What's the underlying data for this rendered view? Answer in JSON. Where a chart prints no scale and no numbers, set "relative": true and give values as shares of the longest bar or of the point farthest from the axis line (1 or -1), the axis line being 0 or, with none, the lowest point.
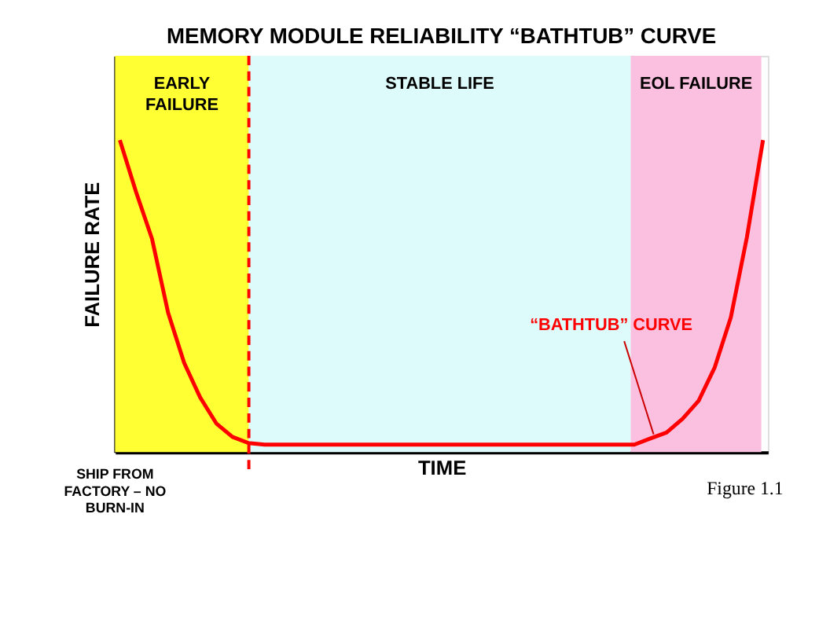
{
  "chart_data": {
    "type": "line",
    "title": "MEMORY MODULE RELIABILITY “BATHTUB” CURVE",
    "xlabel": "TIME",
    "ylabel": "FAILURE RATE",
    "relative": true,
    "line_style": "solid",
    "categories": [
      null,
      null,
      null,
      null,
      null,
      null,
      null,
      null,
      null,
      null,
      null,
      null,
      null,
      null,
      null,
      null,
      null,
      null,
      null,
      null,
      null,
      null,
      null,
      null,
      null,
      null,
      null,
      null,
      null,
      null,
      null,
      null,
      null,
      null,
      null,
      null,
      null,
      null,
      null,
      null,
      null
    ],
    "series": [
      {
        "color": "#ff0000",
        "values": [
          1.0,
          0.835,
          0.684,
          0.447,
          0.286,
          0.175,
          0.092,
          0.049,
          0.029,
          0.024,
          0.024,
          0.024,
          0.024,
          0.024,
          0.024,
          0.024,
          0.024,
          0.024,
          0.024,
          0.024,
          0.024,
          0.024,
          0.024,
          0.024,
          0.024,
          0.024,
          0.024,
          0.024,
          0.024,
          0.024,
          0.024,
          0.024,
          0.024,
          0.044,
          0.063,
          0.107,
          0.165,
          0.272,
          0.432,
          0.689,
          1.0
        ]
      }
    ],
    "annotations": [
      "EARLY FAILURE",
      "STABLE LIFE",
      "EOL FAILURE",
      "“BATHTUB” CURVE",
      "SHIP FROM FACTORY – NO BURN-IN",
      "Figure 1.1"
    ]
  }
}
